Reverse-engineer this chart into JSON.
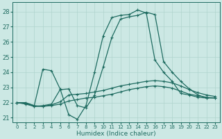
{
  "xlabel": "Humidex (Indice chaleur)",
  "bg_color": "#cce8e4",
  "line_color": "#1e6b60",
  "grid_color": "#b0d4ce",
  "xlim": [
    -0.5,
    23.5
  ],
  "ylim": [
    20.7,
    28.6
  ],
  "yticks": [
    21,
    22,
    23,
    24,
    25,
    26,
    27,
    28
  ],
  "xticks": [
    0,
    1,
    2,
    3,
    4,
    5,
    6,
    7,
    8,
    9,
    10,
    11,
    12,
    13,
    14,
    15,
    16,
    17,
    18,
    19,
    20,
    21,
    22,
    23
  ],
  "lines": [
    {
      "x": [
        0,
        1,
        2,
        3,
        4,
        5,
        6,
        7,
        8,
        9,
        10,
        11,
        12,
        13,
        14,
        15,
        16,
        17,
        18,
        19,
        20,
        21,
        22,
        23
      ],
      "y": [
        22.0,
        22.0,
        21.8,
        24.2,
        24.1,
        22.9,
        21.2,
        20.9,
        21.8,
        24.0,
        26.4,
        27.6,
        27.75,
        27.8,
        28.1,
        27.9,
        24.8,
        24.0,
        23.4,
        22.6,
        22.5,
        22.35,
        22.3,
        null
      ],
      "marker": true
    },
    {
      "x": [
        0,
        1,
        2,
        3,
        4,
        5,
        6,
        7,
        8,
        9,
        10,
        11,
        12,
        13,
        14,
        15,
        16,
        17,
        18,
        19,
        20,
        21,
        22,
        23
      ],
      "y": [
        22.0,
        21.95,
        21.75,
        21.8,
        21.9,
        22.85,
        22.9,
        21.8,
        21.65,
        22.5,
        24.35,
        26.3,
        27.5,
        27.65,
        27.75,
        27.95,
        27.8,
        24.7,
        24.0,
        23.4,
        22.9,
        22.5,
        22.3,
        22.3
      ],
      "marker": true
    },
    {
      "x": [
        0,
        1,
        2,
        3,
        4,
        5,
        6,
        7,
        8,
        9,
        10,
        11,
        12,
        13,
        14,
        15,
        16,
        17,
        18,
        19,
        20,
        21,
        22,
        23
      ],
      "y": [
        22.0,
        21.9,
        21.75,
        21.75,
        21.85,
        22.05,
        22.5,
        22.55,
        22.6,
        22.7,
        22.8,
        22.95,
        23.1,
        23.2,
        23.3,
        23.4,
        23.45,
        23.4,
        23.3,
        23.1,
        22.85,
        22.65,
        22.5,
        22.4
      ],
      "marker": true
    },
    {
      "x": [
        0,
        1,
        2,
        3,
        4,
        5,
        6,
        7,
        8,
        9,
        10,
        11,
        12,
        13,
        14,
        15,
        16,
        17,
        18,
        19,
        20,
        21,
        22,
        23
      ],
      "y": [
        22.0,
        21.95,
        21.8,
        21.75,
        21.8,
        21.9,
        22.1,
        22.2,
        22.3,
        22.35,
        22.45,
        22.55,
        22.7,
        22.85,
        22.95,
        23.05,
        23.1,
        23.05,
        22.95,
        22.75,
        22.55,
        22.45,
        22.35,
        22.3
      ],
      "marker": true
    }
  ]
}
